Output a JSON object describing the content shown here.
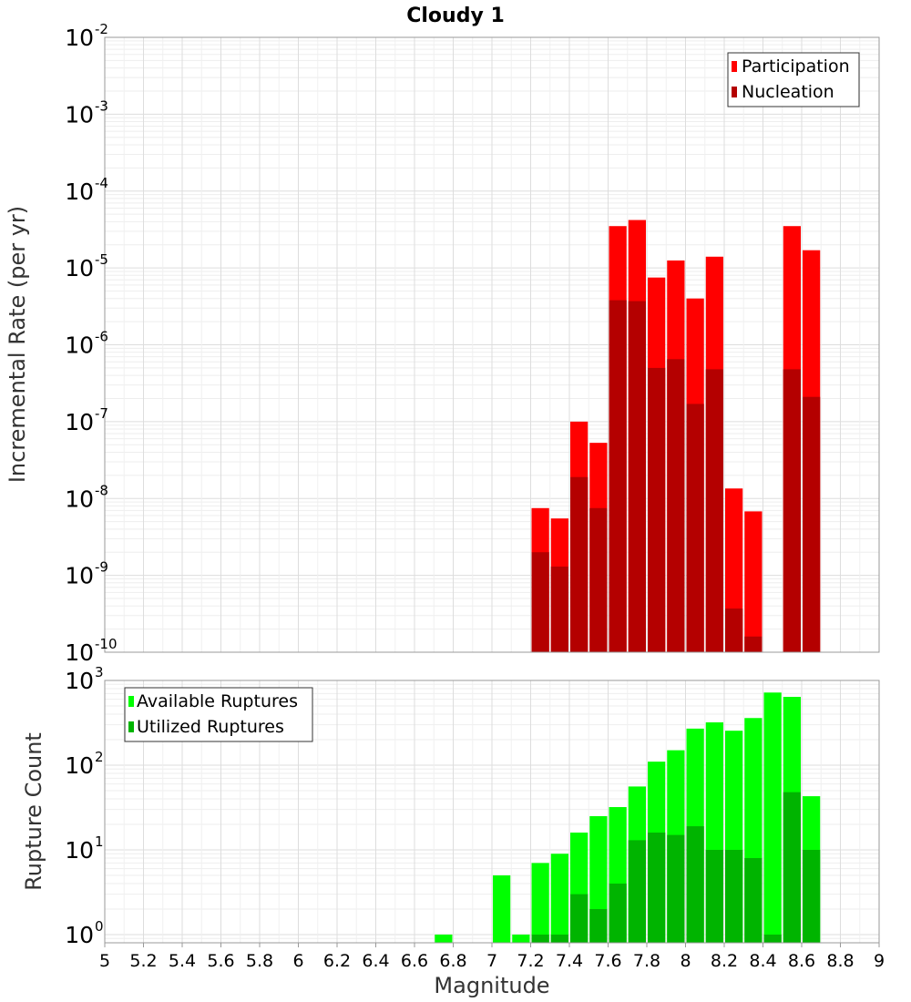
{
  "chart_data": [
    {
      "type": "bar",
      "title": "Cloudy 1",
      "ylabel": "Incremental Rate (per yr)",
      "xlabel": "",
      "ylim": [
        1e-10,
        0.01
      ],
      "yscale": "log",
      "xlim": [
        5,
        9
      ],
      "grid": true,
      "legend_position": "top-right",
      "y_tick_labels": [
        {
          "base": "10",
          "exp": "-10",
          "value": 1e-10
        },
        {
          "base": "10",
          "exp": "-9",
          "value": 1e-09
        },
        {
          "base": "10",
          "exp": "-8",
          "value": 1e-08
        },
        {
          "base": "10",
          "exp": "-7",
          "value": 1e-07
        },
        {
          "base": "10",
          "exp": "-6",
          "value": 1e-06
        },
        {
          "base": "10",
          "exp": "-5",
          "value": 1e-05
        },
        {
          "base": "10",
          "exp": "-4",
          "value": 0.0001
        },
        {
          "base": "10",
          "exp": "-3",
          "value": 0.001
        },
        {
          "base": "10",
          "exp": "-2",
          "value": 0.01
        }
      ],
      "x": [
        7.25,
        7.35,
        7.45,
        7.55,
        7.65,
        7.75,
        7.85,
        7.95,
        8.05,
        8.15,
        8.25,
        8.35,
        8.55,
        8.65
      ],
      "series": [
        {
          "name": "Participation",
          "color": "#ff0000",
          "values": [
            7.5e-09,
            5.5e-09,
            1e-07,
            5.3e-08,
            3.5e-05,
            4.2e-05,
            7.5e-06,
            1.25e-05,
            4e-06,
            1.4e-05,
            1.35e-08,
            6.8e-09,
            3.5e-05,
            1.7e-05
          ]
        },
        {
          "name": "Nucleation",
          "color": "#b40000",
          "values": [
            2e-09,
            1.3e-09,
            1.9e-08,
            7.5e-09,
            3.8e-06,
            3.7e-06,
            5e-07,
            6.5e-07,
            1.7e-07,
            4.8e-07,
            3.7e-10,
            1.6e-10,
            4.8e-07,
            2.1e-07
          ]
        }
      ]
    },
    {
      "type": "bar",
      "title": "",
      "ylabel": "Rupture Count",
      "xlabel": "Magnitude",
      "ylim": [
        0.8,
        1000
      ],
      "yscale": "log",
      "xlim": [
        5,
        9
      ],
      "grid": true,
      "legend_position": "top-left",
      "y_tick_labels": [
        {
          "base": "10",
          "exp": "0",
          "value": 1
        },
        {
          "base": "10",
          "exp": "1",
          "value": 10
        },
        {
          "base": "10",
          "exp": "2",
          "value": 100
        },
        {
          "base": "10",
          "exp": "3",
          "value": 1000
        }
      ],
      "x_tick_labels": [
        "5",
        "5.2",
        "5.4",
        "5.6",
        "5.8",
        "6",
        "6.2",
        "6.4",
        "6.6",
        "6.8",
        "7",
        "7.2",
        "7.4",
        "7.6",
        "7.8",
        "8",
        "8.2",
        "8.4",
        "8.6",
        "8.8",
        "9"
      ],
      "x": [
        6.75,
        7.05,
        7.15,
        7.25,
        7.35,
        7.45,
        7.55,
        7.65,
        7.75,
        7.85,
        7.95,
        8.05,
        8.15,
        8.25,
        8.35,
        8.45,
        8.55,
        8.65
      ],
      "series": [
        {
          "name": "Available Ruptures",
          "color": "#00ff00",
          "values": [
            1,
            5,
            1,
            7,
            9,
            16,
            25,
            32,
            56,
            110,
            150,
            270,
            320,
            255,
            360,
            720,
            640,
            43
          ]
        },
        {
          "name": "Utilized Ruptures",
          "color": "#00b400",
          "values": [
            0,
            0,
            0,
            1,
            1,
            3,
            2,
            4,
            13,
            16,
            15,
            19,
            10,
            10,
            8,
            1,
            48,
            10
          ]
        }
      ]
    }
  ]
}
